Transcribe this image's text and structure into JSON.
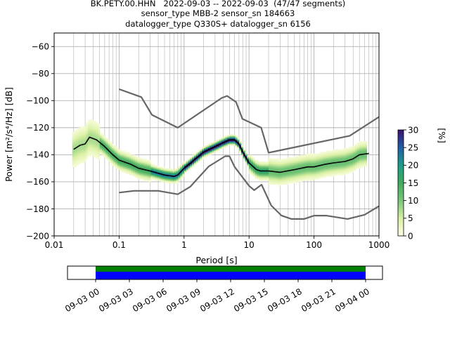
{
  "header": {
    "title_lines": [
      "BK.PETY.00.HHN   2022-09-03 -- 2022-09-03  (47/47 segments)",
      "sensor_type MBB-2 sensor_sn 184663",
      "datalogger_type Q330S+ datalogger_sn 6156"
    ]
  },
  "colorbar": {
    "label": "[%]",
    "ticks": [
      "0",
      "5",
      "10",
      "15",
      "20",
      "25",
      "30"
    ],
    "range": [
      0,
      30
    ],
    "colors": [
      "#ffffe5",
      "#d9f0a3",
      "#78c679",
      "#41ab5d",
      "#1d9e8a",
      "#225ea8",
      "#3b0f70"
    ]
  },
  "chart_data": [
    {
      "type": "heatmap",
      "subtype": "probabilistic power spectral density",
      "xlabel": "Period [s]",
      "ylabel": "Power [m²/s⁴/Hz] [dB]",
      "xscale": "log",
      "xlim": [
        0.01,
        1000
      ],
      "ylim": [
        -200,
        -50
      ],
      "xticks": [
        "0.01",
        "0.1",
        "1",
        "10",
        "100",
        "1000"
      ],
      "yticks": [
        "−60",
        "−80",
        "−100",
        "−120",
        "−140",
        "−160",
        "−180",
        "−200"
      ],
      "grid": true,
      "mean_curve": {
        "color": "#000000",
        "x": [
          0.02,
          0.025,
          0.03,
          0.035,
          0.045,
          0.06,
          0.08,
          0.1,
          0.15,
          0.2,
          0.3,
          0.5,
          0.7,
          0.8,
          1.0,
          1.5,
          2,
          3,
          4,
          5,
          6,
          7,
          8,
          10,
          13,
          15,
          20,
          30,
          50,
          80,
          100,
          150,
          200,
          300,
          400,
          500,
          700
        ],
        "y": [
          -136,
          -133,
          -132,
          -127,
          -129,
          -134,
          -140,
          -144,
          -147,
          -150,
          -152,
          -155,
          -156,
          -155,
          -150,
          -143,
          -138,
          -134,
          -131,
          -129,
          -129,
          -132,
          -138,
          -146,
          -151,
          -152,
          -152,
          -153,
          -151,
          -149,
          -149,
          -147,
          -146,
          -145,
          -143,
          -140,
          -139
        ]
      },
      "noise_models": [
        {
          "name": "NHNM",
          "color": "#666666",
          "x": [
            0.1,
            0.22,
            0.32,
            0.8,
            3.8,
            4.6,
            6.3,
            7.9,
            15.4,
            20,
            354.8,
            1000
          ],
          "y": [
            -91.5,
            -97.4,
            -110.5,
            -120,
            -98,
            -96.5,
            -101,
            -113.5,
            -120,
            -138.5,
            -126,
            -112
          ]
        },
        {
          "name": "NLNM",
          "color": "#666666",
          "x": [
            0.1,
            0.17,
            0.4,
            0.8,
            1.24,
            2.4,
            4.3,
            5,
            6,
            10,
            12,
            15.6,
            21.9,
            31.6,
            45,
            70,
            101,
            154,
            328,
            600,
            1000
          ],
          "y": [
            -168,
            -166.7,
            -166.7,
            -169.2,
            -163.7,
            -148.6,
            -141.1,
            -141.1,
            -149,
            -163,
            -166.2,
            -162.1,
            -177.5,
            -185,
            -187.5,
            -187.5,
            -185,
            -185,
            -187.5,
            -184.4,
            -178
          ]
        }
      ]
    },
    {
      "type": "timeline",
      "description": "data coverage",
      "xlim": [
        "2022-09-02 21:30",
        "2022-09-04 01:30"
      ],
      "xticks": [
        "09-03 00",
        "09-03 03",
        "09-03 06",
        "09-03 09",
        "09-03 12",
        "09-03 15",
        "09-03 18",
        "09-03 21",
        "09-04 00"
      ],
      "bars": [
        {
          "color": "#008000",
          "start": "2022-09-03 00:00",
          "end": "2022-09-04 00:00"
        },
        {
          "color": "#0000ff",
          "start": "2022-09-03 00:00",
          "end": "2022-09-04 00:00"
        }
      ]
    }
  ]
}
